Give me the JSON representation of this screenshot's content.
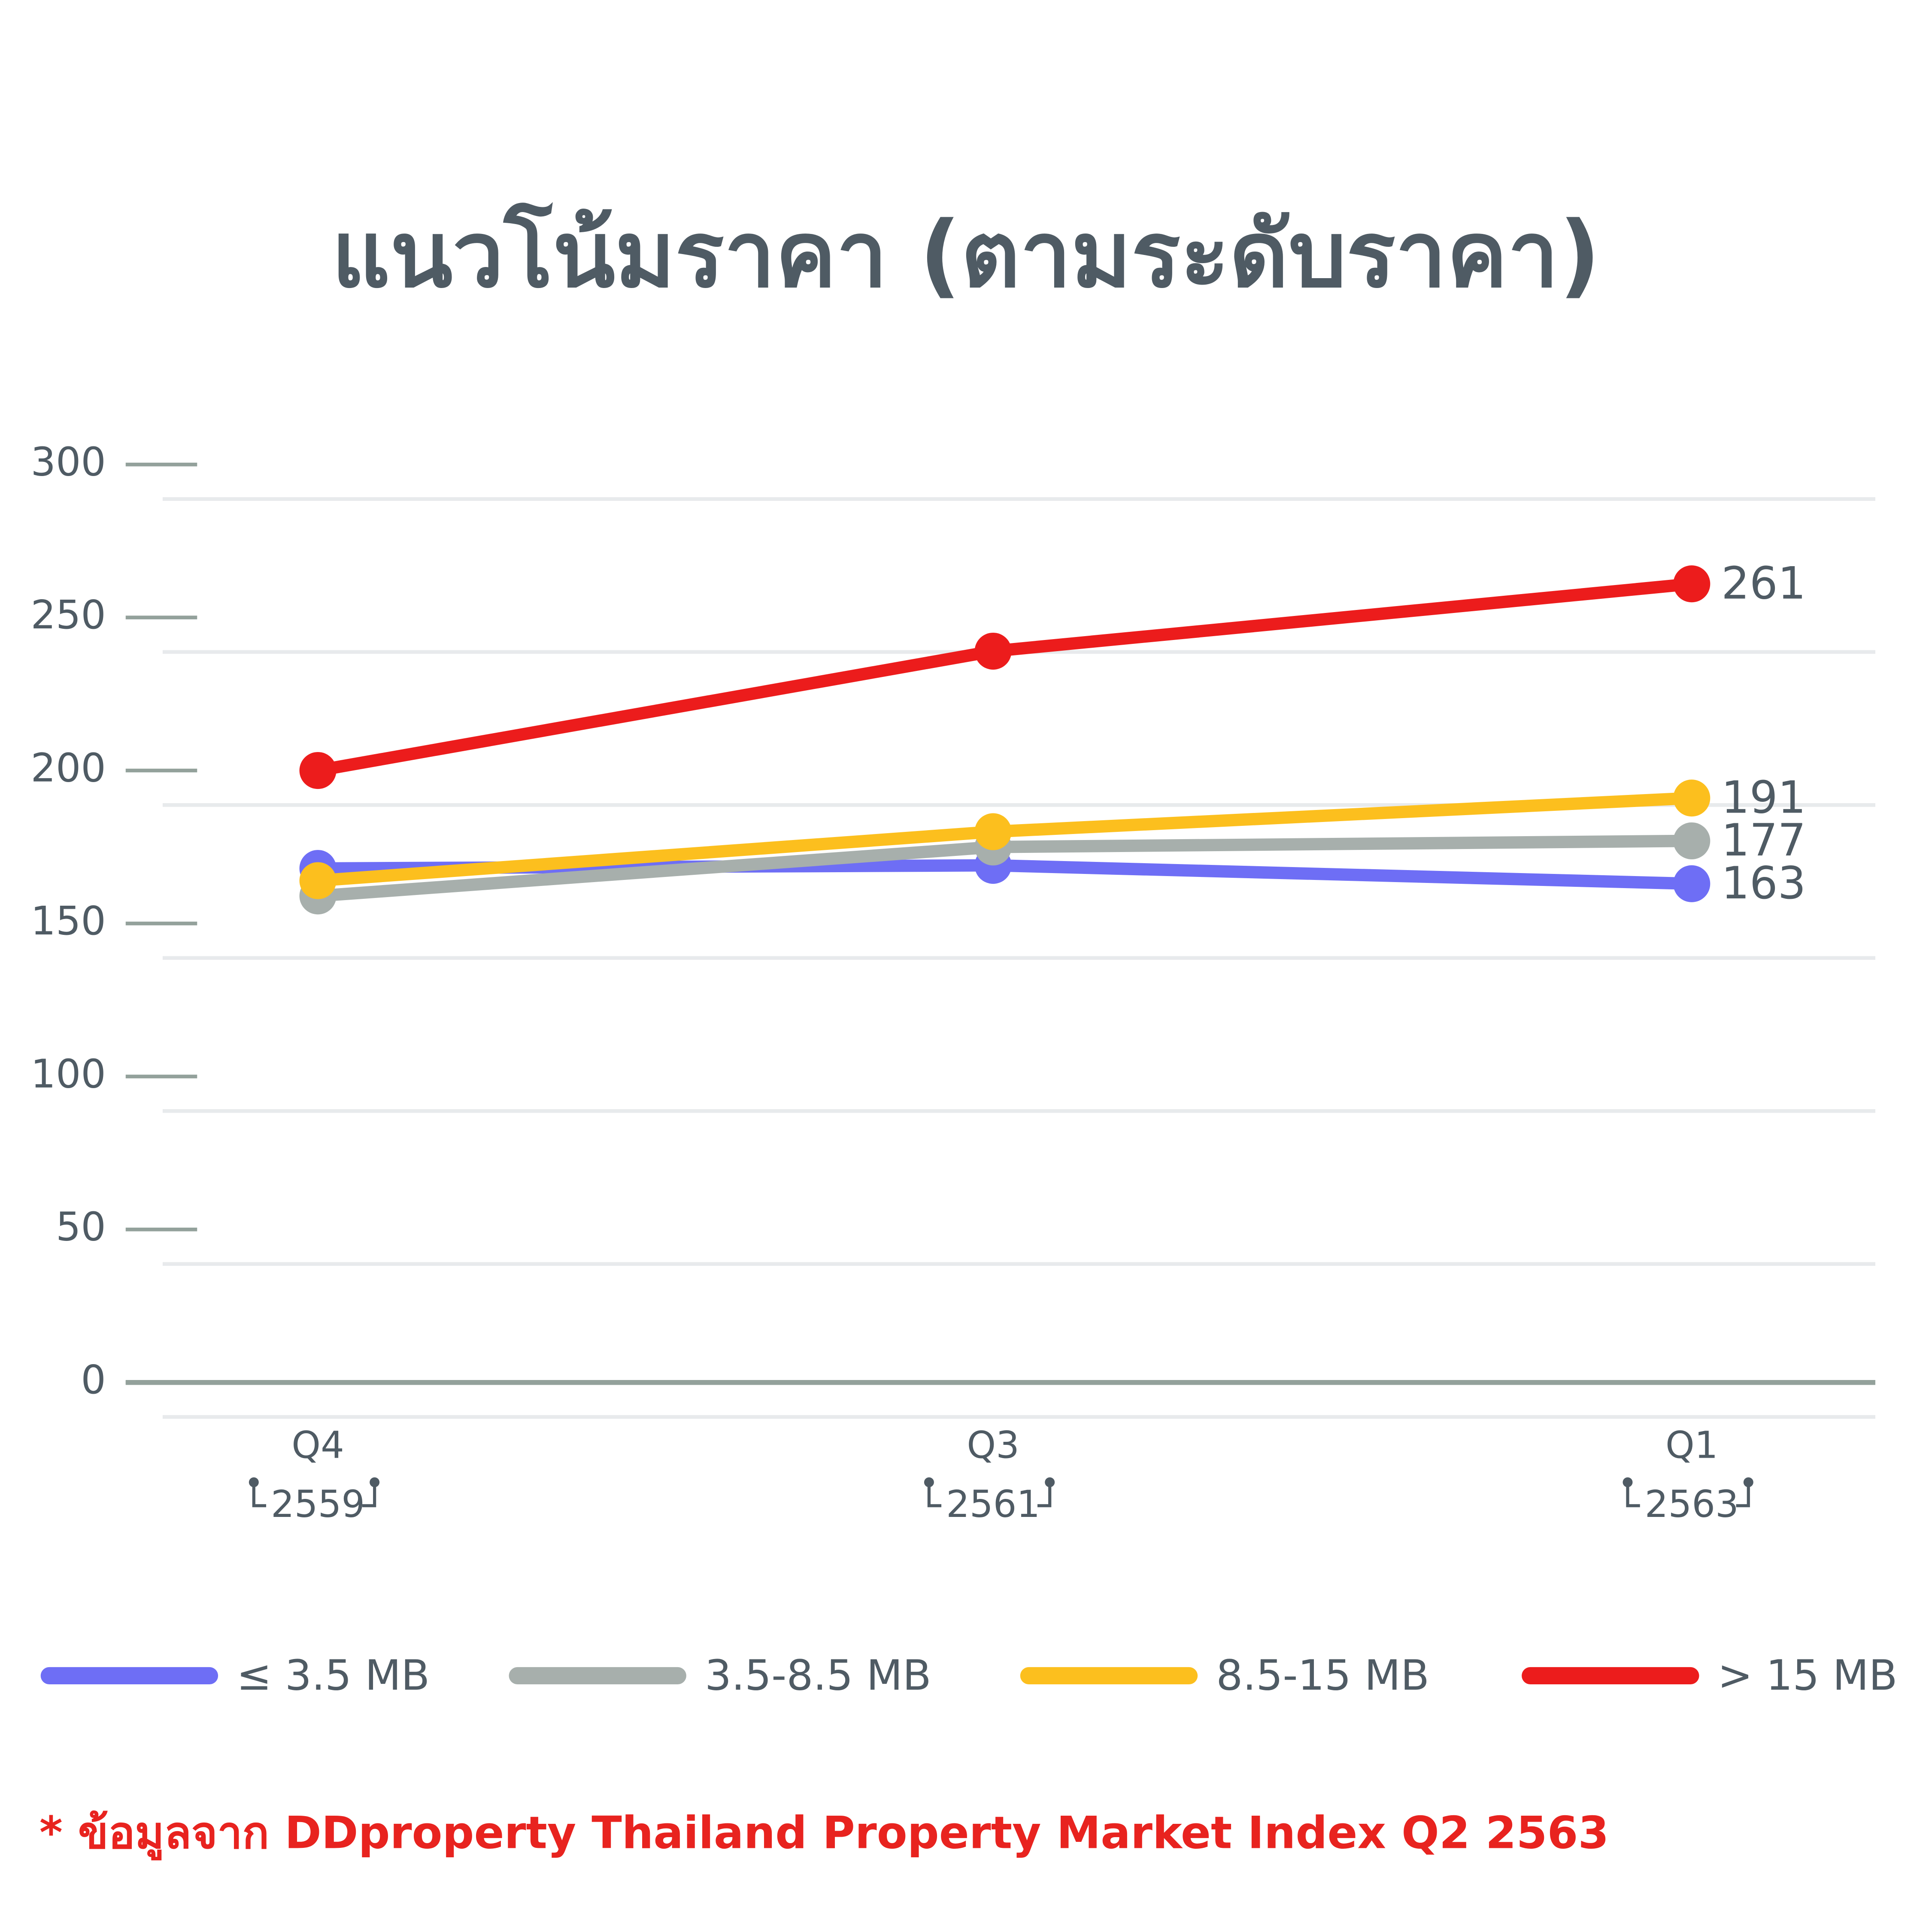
{
  "chart_data": {
    "type": "line",
    "title": "แนวโน้มราคา (ตามระดับราคา)",
    "categories": [
      "Q4",
      "Q3",
      "Q1"
    ],
    "category_years": [
      "2559",
      "2561",
      "2563"
    ],
    "series": [
      {
        "name": "≤ 3.5 MB",
        "color": "#6e6ef5",
        "values": [
          168,
          169,
          163
        ]
      },
      {
        "name": "3.5-8.5 MB",
        "color": "#a7afac",
        "values": [
          159,
          175,
          177
        ]
      },
      {
        "name": "8.5-15 MB",
        "color": "#fcbf1e",
        "values": [
          164,
          180,
          191
        ]
      },
      {
        "name": "> 15 MB",
        "color": "#ec1c1c",
        "values": [
          200,
          239,
          261
        ]
      }
    ],
    "ylim": [
      0,
      300
    ],
    "yticks": [
      0,
      50,
      100,
      150,
      200,
      250,
      300
    ],
    "grid": true,
    "footnote": "* ข้อมูลจาก DDproperty Thailand Property Market Index Q2 2563"
  }
}
